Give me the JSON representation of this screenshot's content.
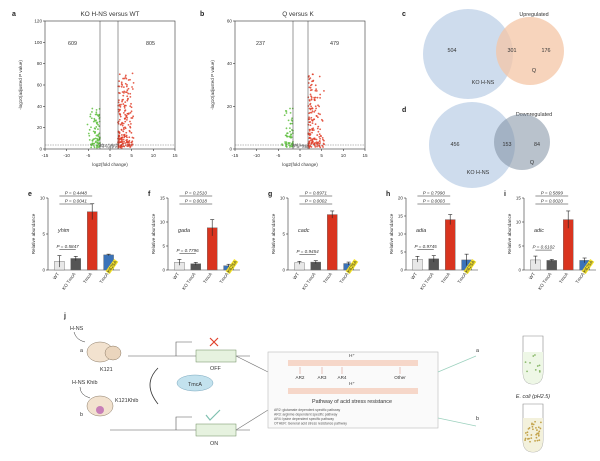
{
  "panels": {
    "a": {
      "letter": "a",
      "title": "KO H-NS versus WT",
      "left_count": "609",
      "right_count": "805",
      "xlabel": "log2(fold change)",
      "ylabel": "-log10(adjusted P value)",
      "xticks": [
        "-15",
        "-10",
        "-5",
        "0",
        "5",
        "10",
        "15"
      ],
      "yticks": [
        "0",
        "20",
        "40",
        "60",
        "80",
        "100",
        "120"
      ]
    },
    "b": {
      "letter": "b",
      "title": "Q versus K",
      "left_count": "237",
      "right_count": "479",
      "xlabel": "log2(fold change)",
      "ylabel": "-log10(adjusted P value)",
      "xticks": [
        "-15",
        "-10",
        "-5",
        "0",
        "5",
        "10",
        "15"
      ],
      "yticks": [
        "0",
        "20",
        "40",
        "60"
      ]
    },
    "c": {
      "letter": "c",
      "title": "Upregulated",
      "left_count": "504",
      "overlap_count": "301",
      "right_count": "176",
      "left_label": "KO H-NS",
      "right_label": "Q"
    },
    "d": {
      "letter": "d",
      "title": "Downregulated",
      "left_count": "456",
      "overlap_count": "153",
      "right_count": "84",
      "left_label": "KO H-NS",
      "right_label": "Q"
    },
    "e": {
      "letter": "e",
      "gene": "yhim",
      "p_top": "P = 0.4448",
      "p_mid": "P = 0.0041",
      "p_low": "P = 0.5847"
    },
    "f": {
      "letter": "f",
      "gene": "gada",
      "p_top": "P = 0.2510",
      "p_mid": "P = 0.0018",
      "p_low": "P = 0.7796"
    },
    "g": {
      "letter": "g",
      "gene": "cadc",
      "p_top": "P = 0.8971",
      "p_mid": "P = 0.0002",
      "p_low": "P = 0.9454"
    },
    "h": {
      "letter": "h",
      "gene": "adia",
      "p_top": "P = 0.7990",
      "p_mid": "P = 0.0003",
      "p_low": "P = 0.9745"
    },
    "i": {
      "letter": "i",
      "gene": "adic",
      "p_top": "P = 0.5899",
      "p_mid": "P = 0.0020",
      "p_low": "P = 0.6102"
    },
    "j": {
      "letter": "j",
      "hns_label": "H-NS",
      "hns_khib_label": "H-NS Khib",
      "k121": "K121",
      "k121khib": "K121Khib",
      "off": "OFF",
      "on": "ON",
      "tmca": "TmcA",
      "a_label": "a",
      "b_label": "b",
      "hplus": "H⁺",
      "pathway_title": "Pathway of acid stress resistance",
      "ar_labels": [
        "AR2",
        "AR3",
        "AR4",
        "Other"
      ],
      "legend_lines": [
        "AR2: glutamate dependent specific pathway",
        "AR3: arginine dependent specific pathway",
        "AR4: lysine dependent specific pathway",
        "OTHER: General acid stress resistance pathway"
      ],
      "ecoli_label": "E. coli (pH2.5)",
      "tube_a": "a",
      "tube_b": "b"
    },
    "bar_ylabel": "Relative abundance",
    "bar_categories": [
      "WT",
      "KO TmcA",
      "TmcA",
      "TmcA K625A"
    ]
  },
  "chart_data": [
    {
      "type": "scatter",
      "title": "KO H-NS versus WT",
      "xlabel": "log2(fold change)",
      "ylabel": "-log10(adjusted P value)",
      "xlim": [
        -15,
        15
      ],
      "ylim": [
        0,
        120
      ],
      "annotations": [
        "609",
        "805"
      ]
    },
    {
      "type": "scatter",
      "title": "Q versus K",
      "xlabel": "log2(fold change)",
      "ylabel": "-log10(adjusted P value)",
      "xlim": [
        -15,
        15
      ],
      "ylim": [
        0,
        60
      ],
      "annotations": [
        "237",
        "479"
      ]
    },
    {
      "type": "bar",
      "gene": "yhim",
      "categories": [
        "WT",
        "KO TmcA",
        "TmcA",
        "TmcA K625A"
      ],
      "values": [
        1.2,
        1.6,
        8.1,
        2.1
      ],
      "errors": [
        0.8,
        0.3,
        1.1,
        0.1
      ],
      "ylim": [
        0,
        10
      ],
      "ylabel": "Relative abundance",
      "colors": [
        "#e8e8e8",
        "#555555",
        "#d9341f",
        "#3b73b9"
      ]
    },
    {
      "type": "bar",
      "gene": "gada",
      "categories": [
        "WT",
        "KO TmcA",
        "TmcA",
        "TmcA K625A"
      ],
      "values": [
        1.6,
        1.3,
        8.8,
        0.9
      ],
      "errors": [
        0.6,
        0.3,
        1.7,
        0.3
      ],
      "ylim": [
        0,
        15
      ],
      "ylabel": "Relative abundance",
      "colors": [
        "#e8e8e8",
        "#555555",
        "#d9341f",
        "#3b73b9"
      ]
    },
    {
      "type": "bar",
      "gene": "cadc",
      "categories": [
        "WT",
        "KO TmcA",
        "TmcA",
        "TmcA K625A"
      ],
      "values": [
        1.0,
        1.1,
        7.7,
        0.9
      ],
      "errors": [
        0.2,
        0.2,
        0.5,
        0.2
      ],
      "ylim": [
        0,
        10
      ],
      "ylabel": "Relative abundance",
      "colors": [
        "#e8e8e8",
        "#555555",
        "#d9341f",
        "#3b73b9"
      ]
    },
    {
      "type": "bar",
      "gene": "adia",
      "categories": [
        "WT",
        "KO TmcA",
        "TmcA",
        "TmcA K625A"
      ],
      "values": [
        3.0,
        3.1,
        14.0,
        2.8
      ],
      "errors": [
        0.8,
        0.9,
        1.4,
        1.6
      ],
      "ylim": [
        0,
        20
      ],
      "ylabel": "Relative abundance",
      "colors": [
        "#e8e8e8",
        "#555555",
        "#d9341f",
        "#3b73b9"
      ]
    },
    {
      "type": "bar",
      "gene": "adic",
      "categories": [
        "WT",
        "KO TmcA",
        "TmcA",
        "TmcA K625A"
      ],
      "values": [
        2.1,
        2.0,
        10.5,
        2.0
      ],
      "errors": [
        0.8,
        0.2,
        1.8,
        0.5
      ],
      "ylim": [
        0,
        15
      ],
      "ylabel": "Relative abundance",
      "colors": [
        "#e8e8e8",
        "#555555",
        "#d9341f",
        "#3b73b9"
      ]
    }
  ]
}
